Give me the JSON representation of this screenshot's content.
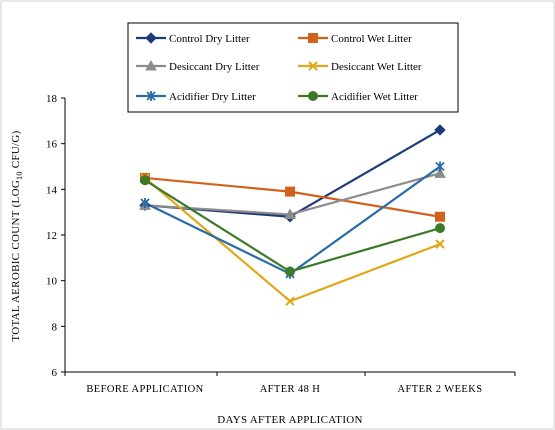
{
  "chart_data": {
    "type": "line",
    "xlabel": "DAYS AFTER APPLICATION",
    "ylabel_parts": [
      "TOTAL AEROBIC COUNT (LOG",
      "10",
      " CFU/G)"
    ],
    "categories": [
      "BEFORE APPLICATION",
      "AFTER 48 H",
      "AFTER 2 WEEKS"
    ],
    "ylim": [
      6,
      18
    ],
    "yticks": [
      6,
      8,
      10,
      12,
      14,
      16,
      18
    ],
    "grid": false,
    "legend_position": "top",
    "series": [
      {
        "name": "Control Dry Litter",
        "values": [
          13.3,
          12.8,
          16.6
        ],
        "color": "#1f3a78",
        "marker": "diamond"
      },
      {
        "name": "Control Wet Litter",
        "values": [
          14.5,
          13.9,
          12.8
        ],
        "color": "#d2611c",
        "marker": "square"
      },
      {
        "name": "Desiccant Dry Litter",
        "values": [
          13.3,
          12.9,
          14.7
        ],
        "color": "#8c8c8c",
        "marker": "triangle"
      },
      {
        "name": "Desiccant Wet Litter",
        "values": [
          14.5,
          9.1,
          11.6
        ],
        "color": "#e0a718",
        "marker": "x"
      },
      {
        "name": "Acidifier Dry Litter",
        "values": [
          13.4,
          10.3,
          15.0
        ],
        "color": "#2a6ca8",
        "marker": "asterisk"
      },
      {
        "name": "Acidifier Wet Litter",
        "values": [
          14.4,
          10.4,
          12.3
        ],
        "color": "#3d7a28",
        "marker": "circle"
      }
    ]
  }
}
